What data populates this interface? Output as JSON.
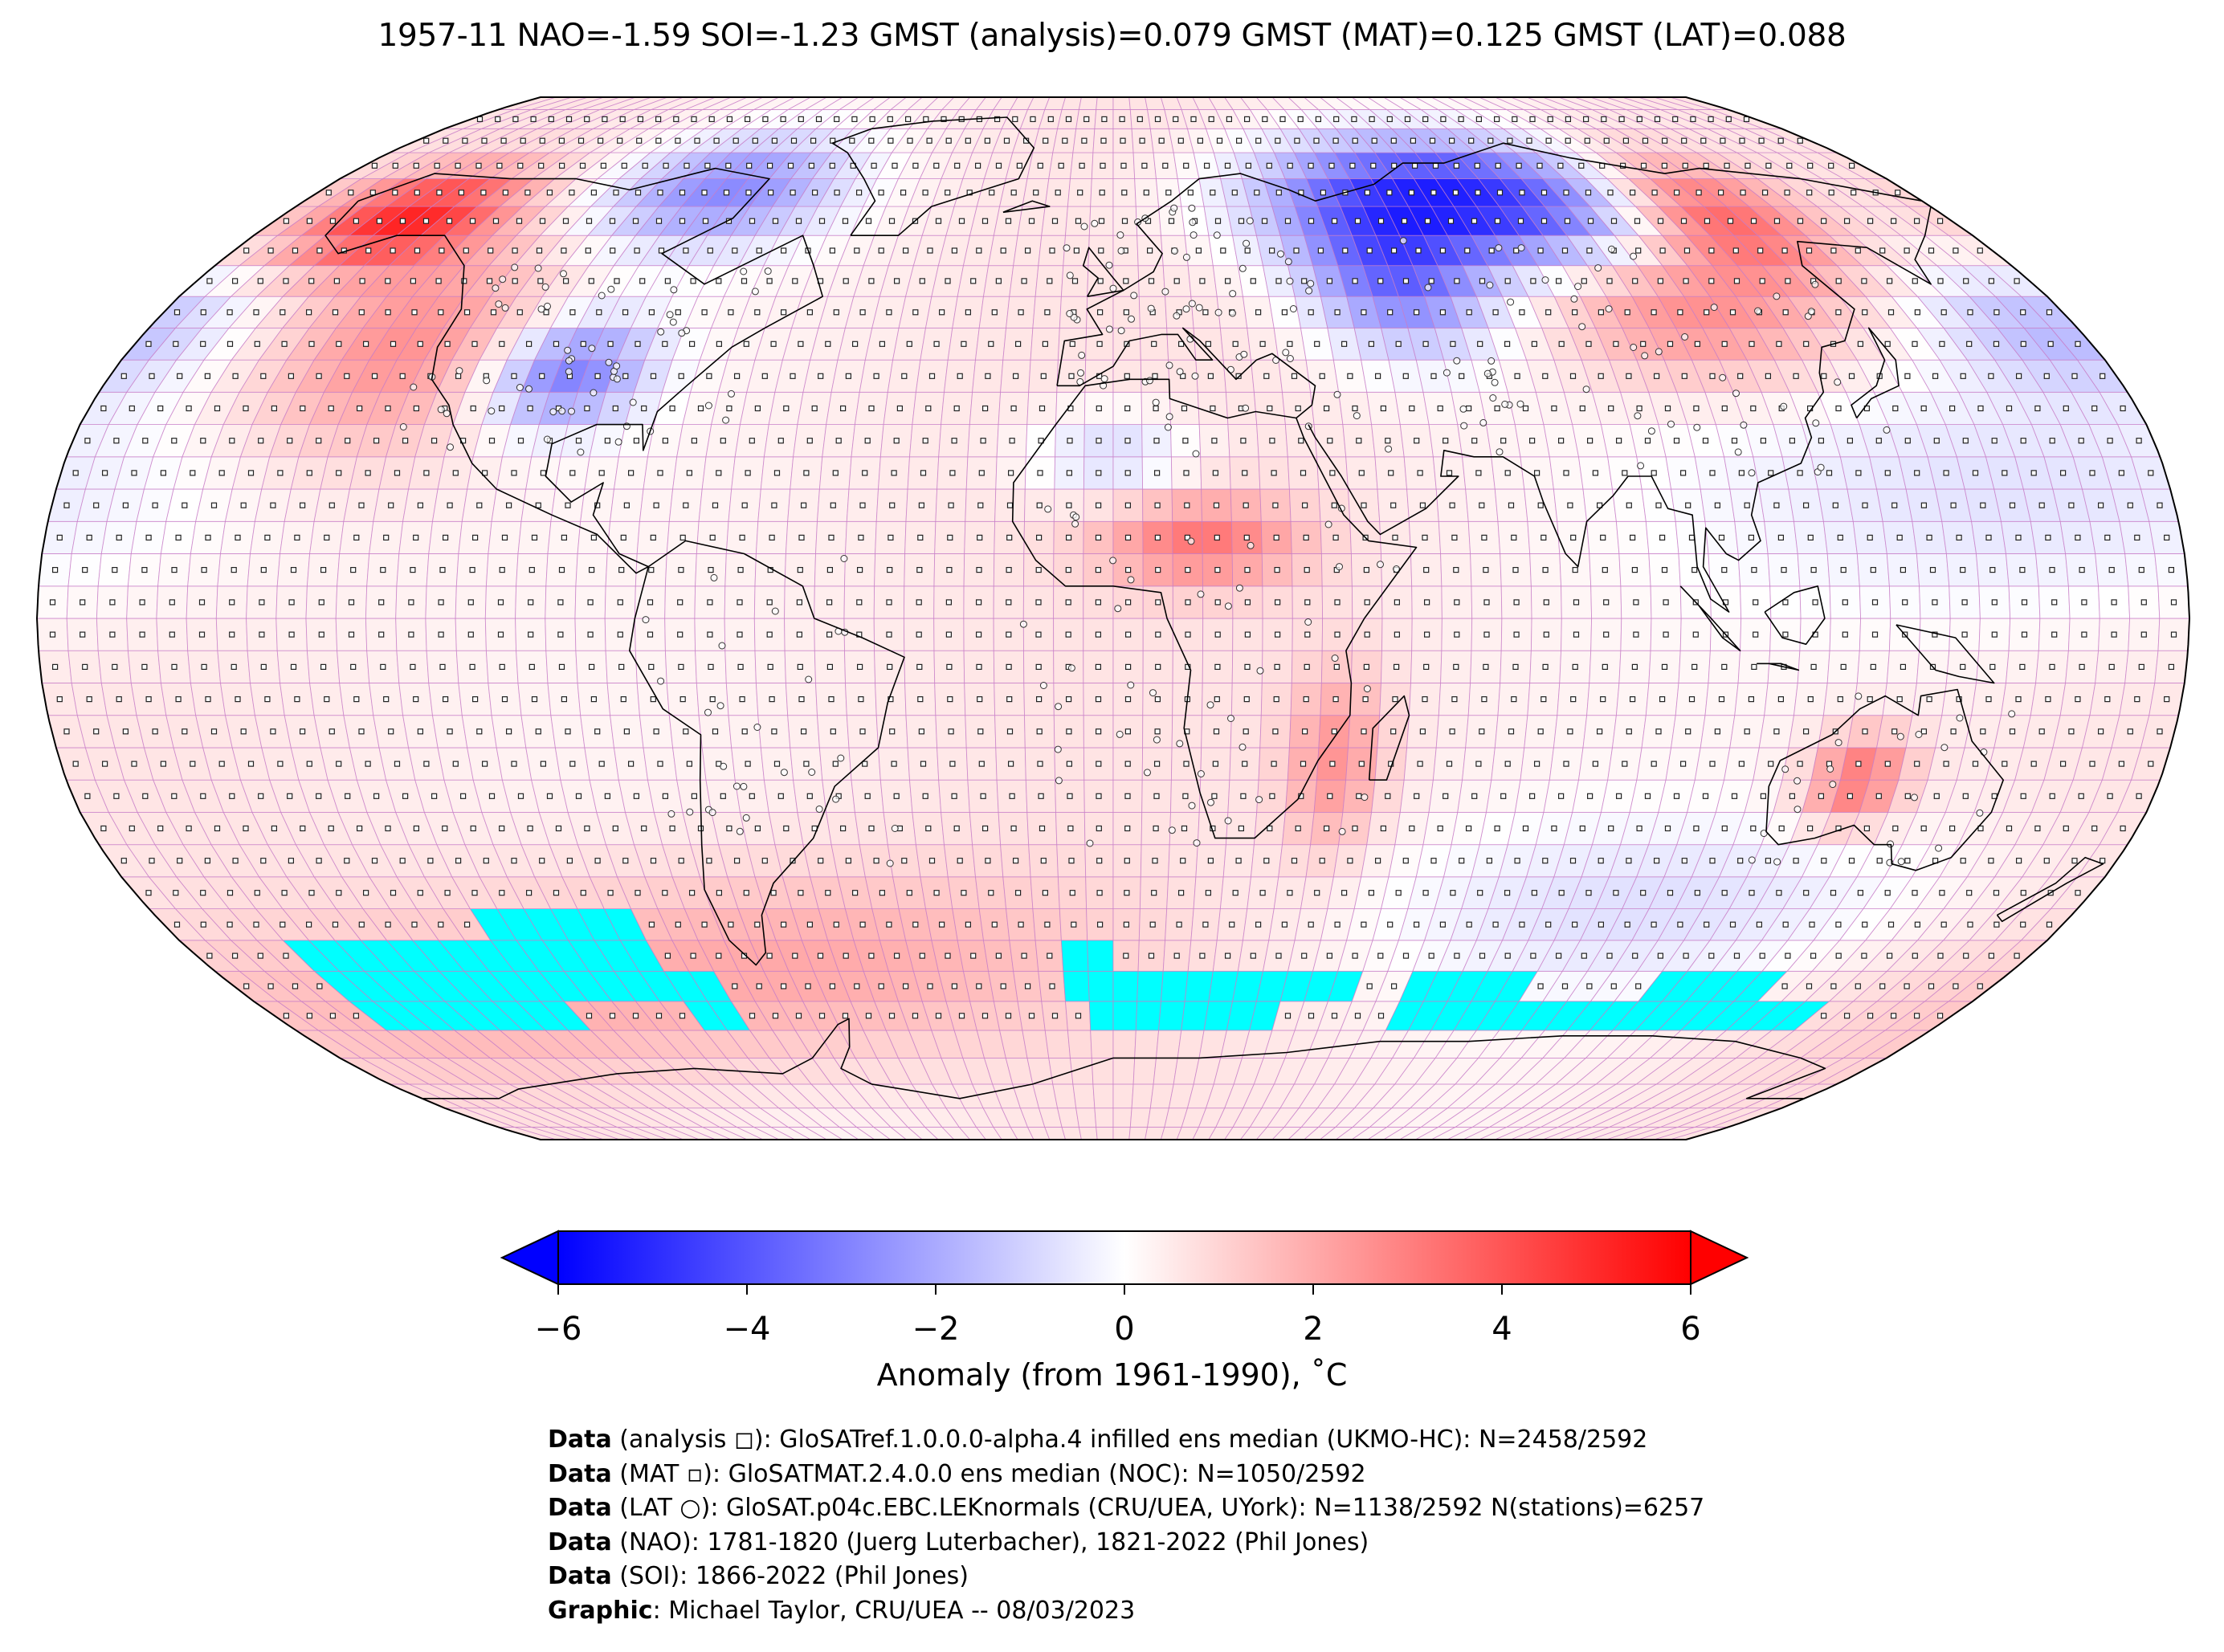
{
  "title": "1957-11 NAO=-1.59 SOI=-1.23 GMST (analysis)=0.079 GMST (MAT)=0.125 GMST (LAT)=0.088",
  "colorbar": {
    "label": "Anomaly (from 1961-1990), ˚C",
    "ticks": [
      "−6",
      "−4",
      "−2",
      "0",
      "2",
      "4",
      "6"
    ],
    "range": [
      -6,
      6
    ],
    "extend": "both",
    "colormap": "bwr",
    "colors": {
      "low": "#0000ff",
      "mid": "#ffffff",
      "high": "#ff0000",
      "missing": "#00ffff"
    }
  },
  "credits": [
    {
      "head": "Data",
      "text": " (analysis ◻): GloSATref.1.0.0.0-alpha.4 infilled ens median (UKMO-HC): N=2458/2592"
    },
    {
      "head": "Data",
      "text": " (MAT ▫): GloSATMAT.2.4.0.0 ens median (NOC): N=1050/2592"
    },
    {
      "head": "Data",
      "text": " (LAT ○): GloSAT.p04c.EBC.LEKnormals (CRU/UEA, UYork): N=1138/2592 N(stations)=6257"
    },
    {
      "head": "Data",
      "text": " (NAO): 1781-1820 (Juerg Luterbacher), 1821-2022 (Phil Jones)"
    },
    {
      "head": "Data",
      "text": " (SOI): 1866-2022 (Phil Jones)"
    },
    {
      "head": "Graphic",
      "text": ": Michael Taylor, CRU/UEA -- 08/03/2023"
    }
  ],
  "map": {
    "projection": "Robinson",
    "grid": "5° x 5°",
    "colors": {
      "grid": "#c77cc7",
      "coast": "#000000",
      "outline": "#000000",
      "station_marker": "#ffffff"
    }
  }
}
